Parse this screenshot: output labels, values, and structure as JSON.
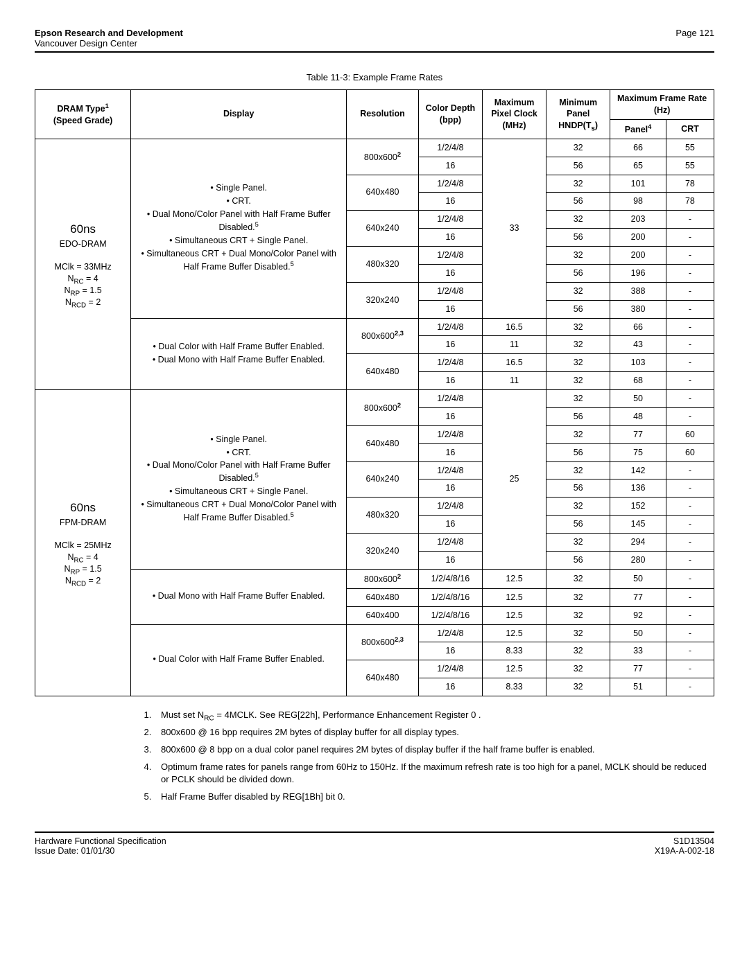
{
  "header": {
    "org": "Epson Research and Development",
    "sub": "Vancouver Design Center",
    "page": "Page 121"
  },
  "caption": "Table 11-3: Example Frame Rates",
  "columns": {
    "dram": "DRAM Type",
    "dram_sup": "1",
    "dram_sub": "(Speed Grade)",
    "display": "Display",
    "resolution": "Resolution",
    "color": "Color Depth (bpp)",
    "maxpixel": "Maximum Pixel Clock (MHz)",
    "minpanel_a": "Minimum Panel",
    "minpanel_b": "HNDP(T",
    "minpanel_sub": "s",
    "minpanel_c": ")",
    "maxframe": "Maximum Frame Rate (Hz)",
    "panel": "Panel",
    "panel_sup": "4",
    "crt": "CRT"
  },
  "dram_blocks": [
    {
      "label_big": "60ns",
      "label_lines": [
        "EDO-DRAM",
        "",
        "MClk = 33MHz",
        "N<sub>RC</sub> = 4",
        "N<sub>RP</sub> = 1.5",
        "N<sub>RCD</sub> = 2"
      ]
    },
    {
      "label_big": "60ns",
      "label_lines": [
        "FPM-DRAM",
        "",
        "MClk = 25MHz",
        "N<sub>RC</sub> = 4",
        "N<sub>RP</sub> = 1.5",
        "N<sub>RCD</sub> = 2"
      ]
    }
  ],
  "display_texts": {
    "single_block": [
      "• Single Panel.",
      "• CRT.",
      "• Dual Mono/Color Panel with Half Frame Buffer Disabled.<sup>5</sup>",
      "• Simultaneous CRT + Single Panel.",
      "• Simultaneous CRT + Dual Mono/Color Panel with Half Frame Buffer Disabled.<sup>5</sup>"
    ],
    "dual_both": [
      "• Dual Color with Half Frame Buffer Enabled.",
      "• Dual Mono with Half Frame Buffer Enabled."
    ],
    "dual_mono": "• Dual Mono with Half Frame Buffer Enabled.",
    "dual_color": "• Dual Color with Half Frame Buffer Enabled."
  },
  "rows_block1_a": [
    {
      "res": "800x600",
      "res_sup": "2",
      "res_span": 2,
      "color": "1/2/4/8",
      "mpc": "33",
      "mpc_span": 10,
      "hndp": "32",
      "panel": "66",
      "crt": "55"
    },
    {
      "color": "16",
      "hndp": "56",
      "panel": "65",
      "crt": "55"
    },
    {
      "res": "640x480",
      "res_span": 2,
      "color": "1/2/4/8",
      "hndp": "32",
      "panel": "101",
      "crt": "78"
    },
    {
      "color": "16",
      "hndp": "56",
      "panel": "98",
      "crt": "78"
    },
    {
      "res": "640x240",
      "res_span": 2,
      "color": "1/2/4/8",
      "hndp": "32",
      "panel": "203",
      "crt": "-"
    },
    {
      "color": "16",
      "hndp": "56",
      "panel": "200",
      "crt": "-"
    },
    {
      "res": "480x320",
      "res_span": 2,
      "color": "1/2/4/8",
      "hndp": "32",
      "panel": "200",
      "crt": "-"
    },
    {
      "color": "16",
      "hndp": "56",
      "panel": "196",
      "crt": "-"
    },
    {
      "res": "320x240",
      "res_span": 2,
      "color": "1/2/4/8",
      "hndp": "32",
      "panel": "388",
      "crt": "-"
    },
    {
      "color": "16",
      "hndp": "56",
      "panel": "380",
      "crt": "-"
    }
  ],
  "rows_block1_b": [
    {
      "res": "800x600",
      "res_sup": "2,3",
      "res_span": 2,
      "color": "1/2/4/8",
      "mpc": "16.5",
      "hndp": "32",
      "panel": "66",
      "crt": "-"
    },
    {
      "color": "16",
      "mpc": "11",
      "hndp": "32",
      "panel": "43",
      "crt": "-"
    },
    {
      "res": "640x480",
      "res_span": 2,
      "color": "1/2/4/8",
      "mpc": "16.5",
      "hndp": "32",
      "panel": "103",
      "crt": "-"
    },
    {
      "color": "16",
      "mpc": "11",
      "hndp": "32",
      "panel": "68",
      "crt": "-"
    }
  ],
  "rows_block2_a": [
    {
      "res": "800x600",
      "res_sup": "2",
      "res_span": 2,
      "color": "1/2/4/8",
      "mpc": "25",
      "mpc_span": 10,
      "hndp": "32",
      "panel": "50",
      "crt": "-"
    },
    {
      "color": "16",
      "hndp": "56",
      "panel": "48",
      "crt": "-"
    },
    {
      "res": "640x480",
      "res_span": 2,
      "color": "1/2/4/8",
      "hndp": "32",
      "panel": "77",
      "crt": "60"
    },
    {
      "color": "16",
      "hndp": "56",
      "panel": "75",
      "crt": "60"
    },
    {
      "res": "640x240",
      "res_span": 2,
      "color": "1/2/4/8",
      "hndp": "32",
      "panel": "142",
      "crt": "-"
    },
    {
      "color": "16",
      "hndp": "56",
      "panel": "136",
      "crt": "-"
    },
    {
      "res": "480x320",
      "res_span": 2,
      "color": "1/2/4/8",
      "hndp": "32",
      "panel": "152",
      "crt": "-"
    },
    {
      "color": "16",
      "hndp": "56",
      "panel": "145",
      "crt": "-"
    },
    {
      "res": "320x240",
      "res_span": 2,
      "color": "1/2/4/8",
      "hndp": "32",
      "panel": "294",
      "crt": "-"
    },
    {
      "color": "16",
      "hndp": "56",
      "panel": "280",
      "crt": "-"
    }
  ],
  "rows_block2_b": [
    {
      "res": "800x600",
      "res_sup": "2",
      "color": "1/2/4/8/16",
      "mpc": "12.5",
      "hndp": "32",
      "panel": "50",
      "crt": "-"
    },
    {
      "res": "640x480",
      "color": "1/2/4/8/16",
      "mpc": "12.5",
      "hndp": "32",
      "panel": "77",
      "crt": "-"
    },
    {
      "res": "640x400",
      "color": "1/2/4/8/16",
      "mpc": "12.5",
      "hndp": "32",
      "panel": "92",
      "crt": "-"
    }
  ],
  "rows_block2_c": [
    {
      "res": "800x600",
      "res_sup": "2,3",
      "res_span": 2,
      "color": "1/2/4/8",
      "mpc": "12.5",
      "hndp": "32",
      "panel": "50",
      "crt": "-"
    },
    {
      "color": "16",
      "mpc": "8.33",
      "hndp": "32",
      "panel": "33",
      "crt": "-"
    },
    {
      "res": "640x480",
      "res_span": 2,
      "color": "1/2/4/8",
      "mpc": "12.5",
      "hndp": "32",
      "panel": "77",
      "crt": "-"
    },
    {
      "color": "16",
      "mpc": "8.33",
      "hndp": "32",
      "panel": "51",
      "crt": "-"
    }
  ],
  "notes": [
    "Must set N<sub>RC</sub> = 4MCLK. See REG[22h],  Performance Enhancement Register 0 .",
    "800x600 @ 16 bpp requires 2M bytes of display buffer for all display types.",
    "800x600 @ 8 bpp on a dual color panel requires 2M bytes of display buffer if the half frame buffer is enabled.",
    "Optimum frame rates for panels range from 60Hz to 150Hz. If the maximum refresh rate is too high for a panel, MCLK should be reduced or PCLK should be divided down.",
    "Half Frame Buffer disabled by REG[1Bh] bit 0."
  ],
  "footer": {
    "left1": "Hardware Functional Specification",
    "left2": "Issue Date: 01/01/30",
    "right1": "S1D13504",
    "right2": "X19A-A-002-18"
  }
}
